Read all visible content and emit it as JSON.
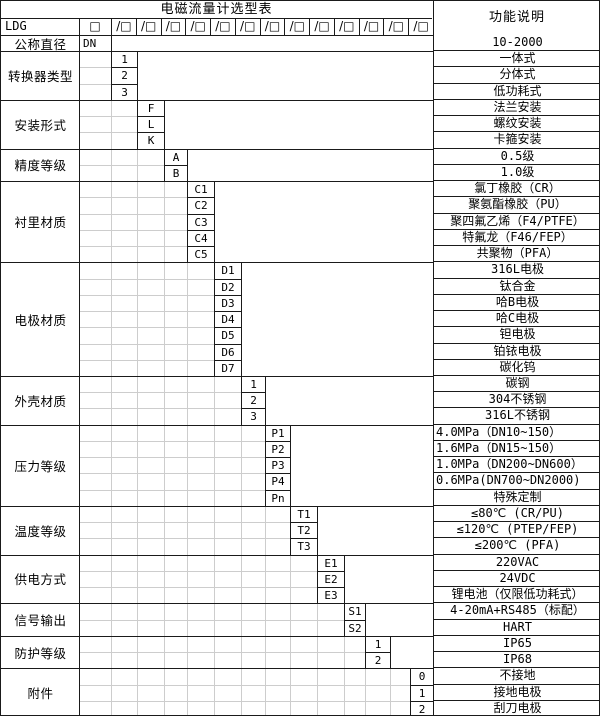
{
  "title": "电磁流量计选型表",
  "right_header": "功能说明",
  "model": {
    "prefix": "LDG",
    "first_box": "□",
    "slash_box": "/□",
    "slash_box_count": 13
  },
  "groups": [
    {
      "name": "公称直径",
      "options": [
        {
          "code": "DN",
          "desc": "10-2000"
        }
      ]
    },
    {
      "name": "转换器类型",
      "options": [
        {
          "code": "1",
          "desc": "一体式"
        },
        {
          "code": "2",
          "desc": "分体式"
        },
        {
          "code": "3",
          "desc": "低功耗式"
        }
      ]
    },
    {
      "name": "安装形式",
      "options": [
        {
          "code": "F",
          "desc": "法兰安装"
        },
        {
          "code": "L",
          "desc": "螺纹安装"
        },
        {
          "code": "K",
          "desc": "卡箍安装"
        }
      ]
    },
    {
      "name": "精度等级",
      "options": [
        {
          "code": "A",
          "desc": "0.5级"
        },
        {
          "code": "B",
          "desc": "1.0级"
        }
      ]
    },
    {
      "name": "衬里材质",
      "options": [
        {
          "code": "C1",
          "desc": "氯丁橡胶（CR）"
        },
        {
          "code": "C2",
          "desc": "聚氨酯橡胶（PU）"
        },
        {
          "code": "C3",
          "desc": "聚四氟乙烯（F4/PTFE）"
        },
        {
          "code": "C4",
          "desc": "特氟龙（F46/FEP）"
        },
        {
          "code": "C5",
          "desc": "共聚物（PFA）"
        }
      ]
    },
    {
      "name": "电极材质",
      "options": [
        {
          "code": "D1",
          "desc": "316L电极"
        },
        {
          "code": "D2",
          "desc": "钛合金"
        },
        {
          "code": "D3",
          "desc": "哈B电极"
        },
        {
          "code": "D4",
          "desc": "哈C电极"
        },
        {
          "code": "D5",
          "desc": "钽电极"
        },
        {
          "code": "D6",
          "desc": "铂铱电极"
        },
        {
          "code": "D7",
          "desc": "碳化钨"
        }
      ]
    },
    {
      "name": "外壳材质",
      "options": [
        {
          "code": "1",
          "desc": "碳钢"
        },
        {
          "code": "2",
          "desc": "304不锈钢"
        },
        {
          "code": "3",
          "desc": "316L不锈钢"
        }
      ]
    },
    {
      "name": "压力等级",
      "options": [
        {
          "code": "P1",
          "desc": "4.0MPa（DN10~150）",
          "align": "left"
        },
        {
          "code": "P2",
          "desc": "1.6MPa（DN15~150）",
          "align": "left"
        },
        {
          "code": "P3",
          "desc": "1.0MPa（DN200~DN600）",
          "align": "left"
        },
        {
          "code": "P4",
          "desc": "0.6MPa(DN700~DN2000)",
          "align": "left"
        },
        {
          "code": "Pn",
          "desc": "特殊定制"
        }
      ]
    },
    {
      "name": "温度等级",
      "options": [
        {
          "code": "T1",
          "desc": "≤80℃ (CR/PU)"
        },
        {
          "code": "T2",
          "desc": "≤120℃ (PTEP/FEP)"
        },
        {
          "code": "T3",
          "desc": "≤200℃ (PFA)"
        }
      ]
    },
    {
      "name": "供电方式",
      "options": [
        {
          "code": "E1",
          "desc": "220VAC"
        },
        {
          "code": "E2",
          "desc": "24VDC"
        },
        {
          "code": "E3",
          "desc": "锂电池（仅限低功耗式）"
        }
      ]
    },
    {
      "name": "信号输出",
      "options": [
        {
          "code": "S1",
          "desc": "4-20mA+RS485（标配）"
        },
        {
          "code": "S2",
          "desc": "HART"
        }
      ]
    },
    {
      "name": "防护等级",
      "options": [
        {
          "code": "1",
          "desc": "IP65"
        },
        {
          "code": "2",
          "desc": "IP68"
        }
      ]
    },
    {
      "name": "附件",
      "options": [
        {
          "code": "0",
          "desc": "不接地"
        },
        {
          "code": "1",
          "desc": "接地电极"
        },
        {
          "code": "2",
          "desc": "刮刀电极"
        }
      ]
    }
  ],
  "colors": {
    "border_line": "#1a1a1a",
    "sheet_gridline": "#cdcdcd",
    "background": "#ffffff",
    "text": "#000000"
  }
}
